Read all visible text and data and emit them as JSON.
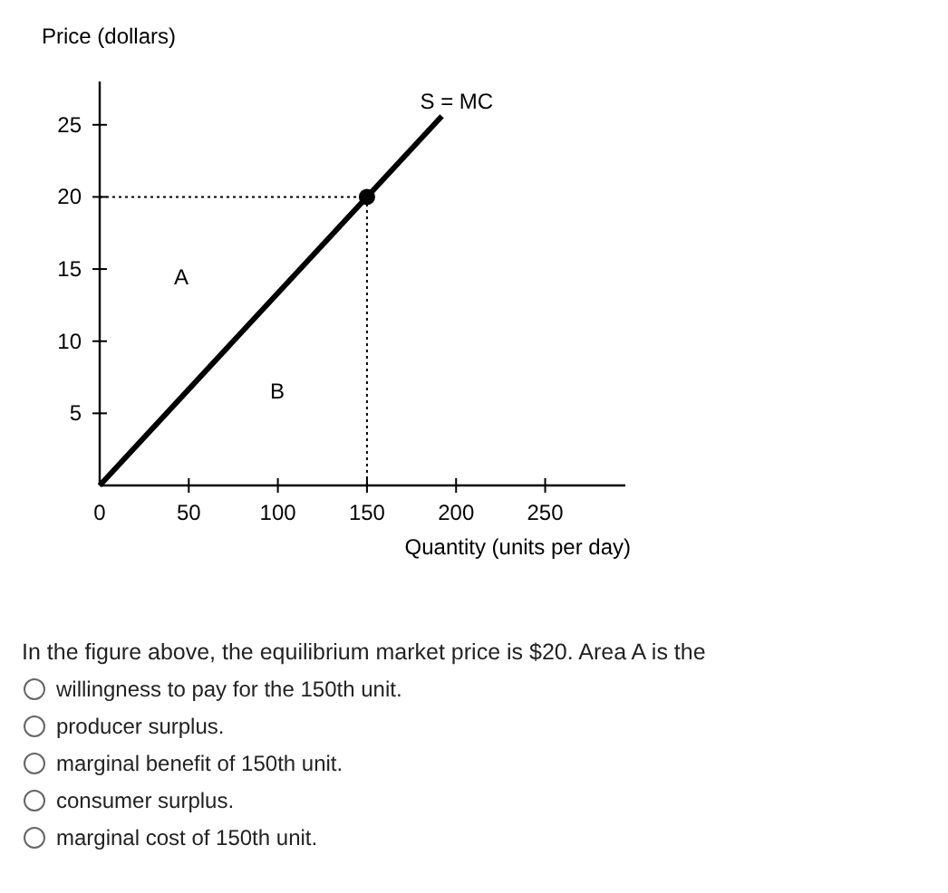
{
  "chart_data": {
    "type": "line",
    "ylabel": "Price (dollars)",
    "xlabel": "Quantity (units per day)",
    "xlim": [
      0,
      295
    ],
    "ylim": [
      0,
      28
    ],
    "xticks": [
      0,
      50,
      100,
      150,
      200,
      250
    ],
    "yticks": [
      5,
      10,
      15,
      20,
      25
    ],
    "series": [
      {
        "name": "S = MC",
        "color": "#000000",
        "x": [
          0,
          192
        ],
        "values": [
          0,
          25.6
        ]
      },
      {
        "type": "scatter",
        "color": "#000000",
        "x": [
          150
        ],
        "values": [
          20
        ]
      }
    ],
    "ref_lines": [
      {
        "axis": "x",
        "value": 150,
        "line_style": "dotted"
      },
      {
        "axis": "y",
        "value": 20,
        "line_style": "dotted"
      }
    ],
    "grid": false,
    "annotations": [
      "A",
      "B",
      "In the figure above, the equilibrium market price is $20. Area A is the",
      "willingness to pay for the 150th unit.",
      "producer surplus.",
      "marginal benefit of 150th unit.",
      "consumer surplus.",
      "marginal cost of 150th unit."
    ]
  }
}
